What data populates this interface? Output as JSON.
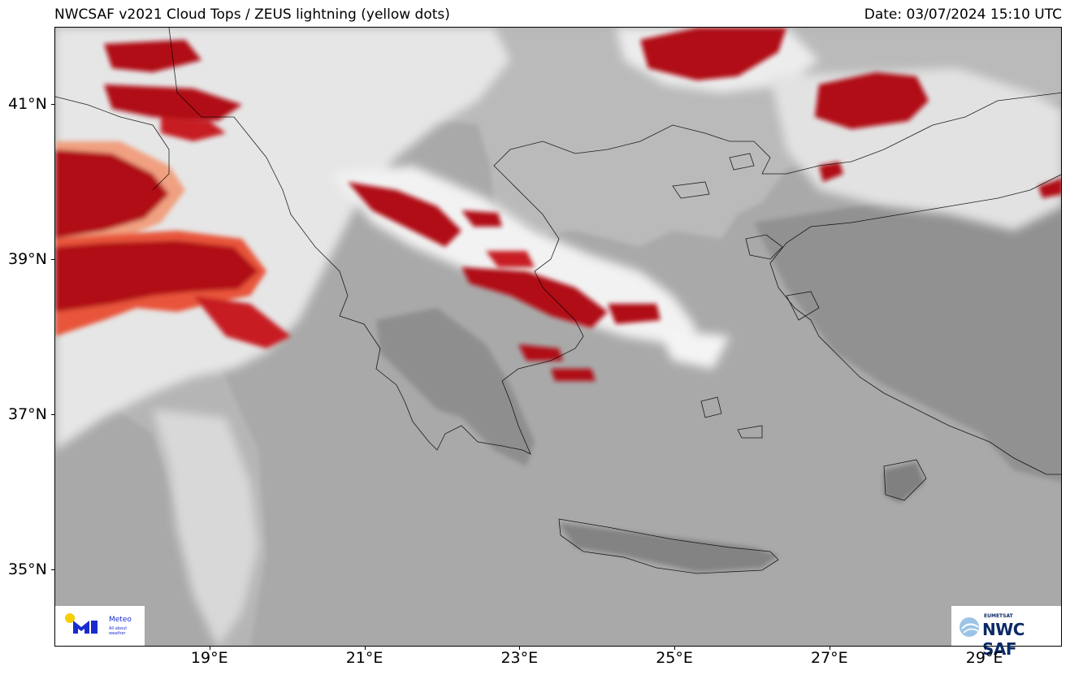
{
  "header": {
    "title": "NWCSAF v2021 Cloud Tops / ZEUS lightning (yellow dots)",
    "date": "Date: 03/07/2024 15:10 UTC"
  },
  "map": {
    "region": "Greece and surrounding Aegean / Ionian seas",
    "projection": "geographic",
    "lon_range": [
      17.0,
      30.0
    ],
    "lat_range": [
      34.0,
      42.0
    ],
    "colors": {
      "background_sea": "#a9a9a9",
      "coastline": "#000000",
      "cloud_low": "#c8c8c8",
      "cloud_mid": "#eeeeee",
      "cloud_high": "#ffffff",
      "cold_top_light": "#f8b8a0",
      "cold_top": "#e8553a",
      "coldest_top": "#b01018"
    }
  },
  "axes": {
    "y_ticks": [
      {
        "value": 41,
        "label": "41°N"
      },
      {
        "value": 39,
        "label": "39°N"
      },
      {
        "value": 37,
        "label": "37°N"
      },
      {
        "value": 35,
        "label": "35°N"
      }
    ],
    "x_ticks": [
      {
        "value": 19,
        "label": "19°E"
      },
      {
        "value": 21,
        "label": "21°E"
      },
      {
        "value": 23,
        "label": "23°E"
      },
      {
        "value": 25,
        "label": "25°E"
      },
      {
        "value": 27,
        "label": "27°E"
      },
      {
        "value": 29,
        "label": "29°E"
      }
    ]
  },
  "logos": {
    "left": {
      "name": "meteo-logo",
      "word": "Meteo",
      "tagline": "All about weather"
    },
    "right": {
      "name": "nwcsaf-logo",
      "small": "EUMETSAT",
      "big": "NWC SAF"
    }
  }
}
